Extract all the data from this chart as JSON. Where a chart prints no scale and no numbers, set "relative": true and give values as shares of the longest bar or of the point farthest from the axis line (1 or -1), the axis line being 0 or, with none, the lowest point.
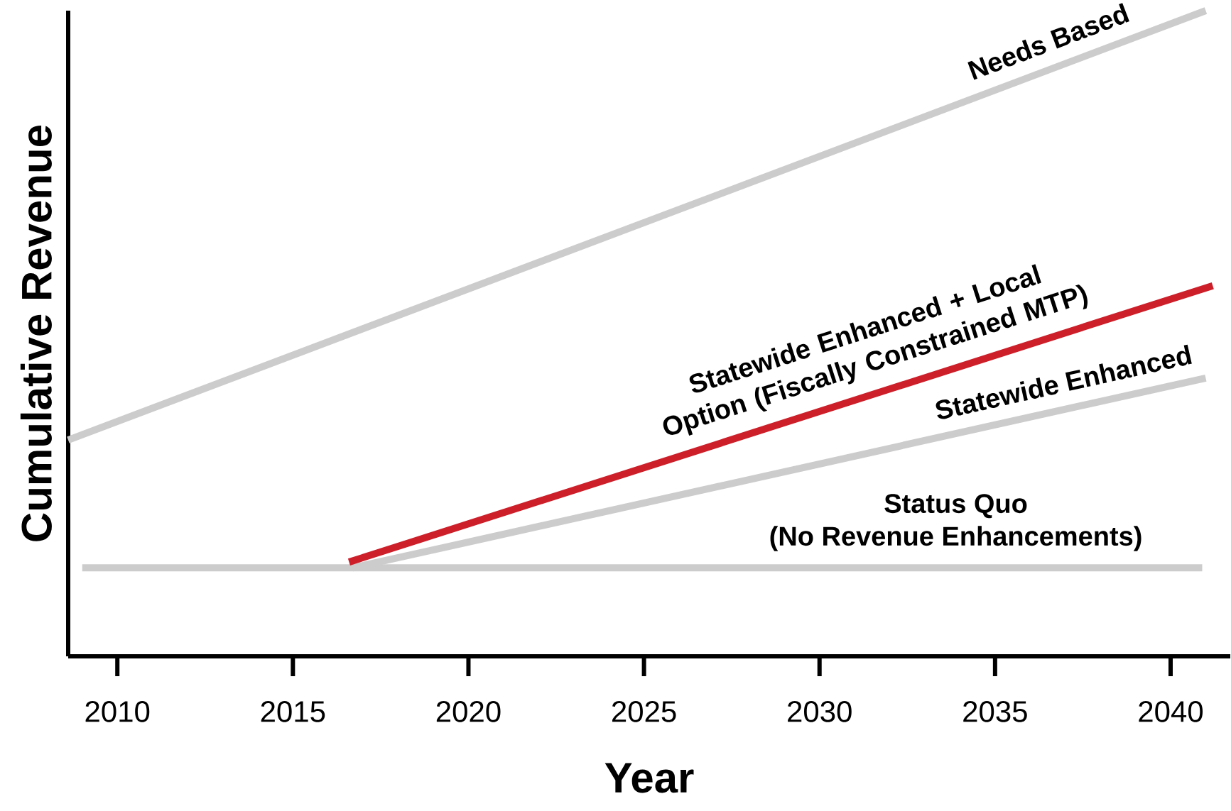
{
  "chart_data": {
    "type": "line",
    "relative": true,
    "xlabel": "Year",
    "ylabel": "Cumulative Revenue",
    "xlim": [
      2008.6,
      2041.7
    ],
    "xticks": [
      2010,
      2015,
      2020,
      2025,
      2030,
      2035,
      2040
    ],
    "grid": false,
    "marker": "none",
    "line_style": "solid",
    "series": [
      {
        "name": "Needs Based",
        "color": "#cccccc",
        "x": [
          2008.6,
          2041.0
        ],
        "values": [
          0.335,
          1.0
        ]
      },
      {
        "name": "Status Quo (No Revenue Enhancements)",
        "color": "#cccccc",
        "x": [
          2009.0,
          2040.9
        ],
        "values": [
          0.137,
          0.137
        ]
      },
      {
        "name": "Statewide Enhanced",
        "color": "#cccccc",
        "x": [
          2016.7,
          2041.0
        ],
        "values": [
          0.137,
          0.431
        ]
      },
      {
        "name": "Statewide Enhanced + Local Option (Fiscally Constrained MTP)",
        "color": "#cc1f2a",
        "x": [
          2016.6,
          2041.2
        ],
        "values": [
          0.146,
          0.574
        ]
      }
    ]
  }
}
